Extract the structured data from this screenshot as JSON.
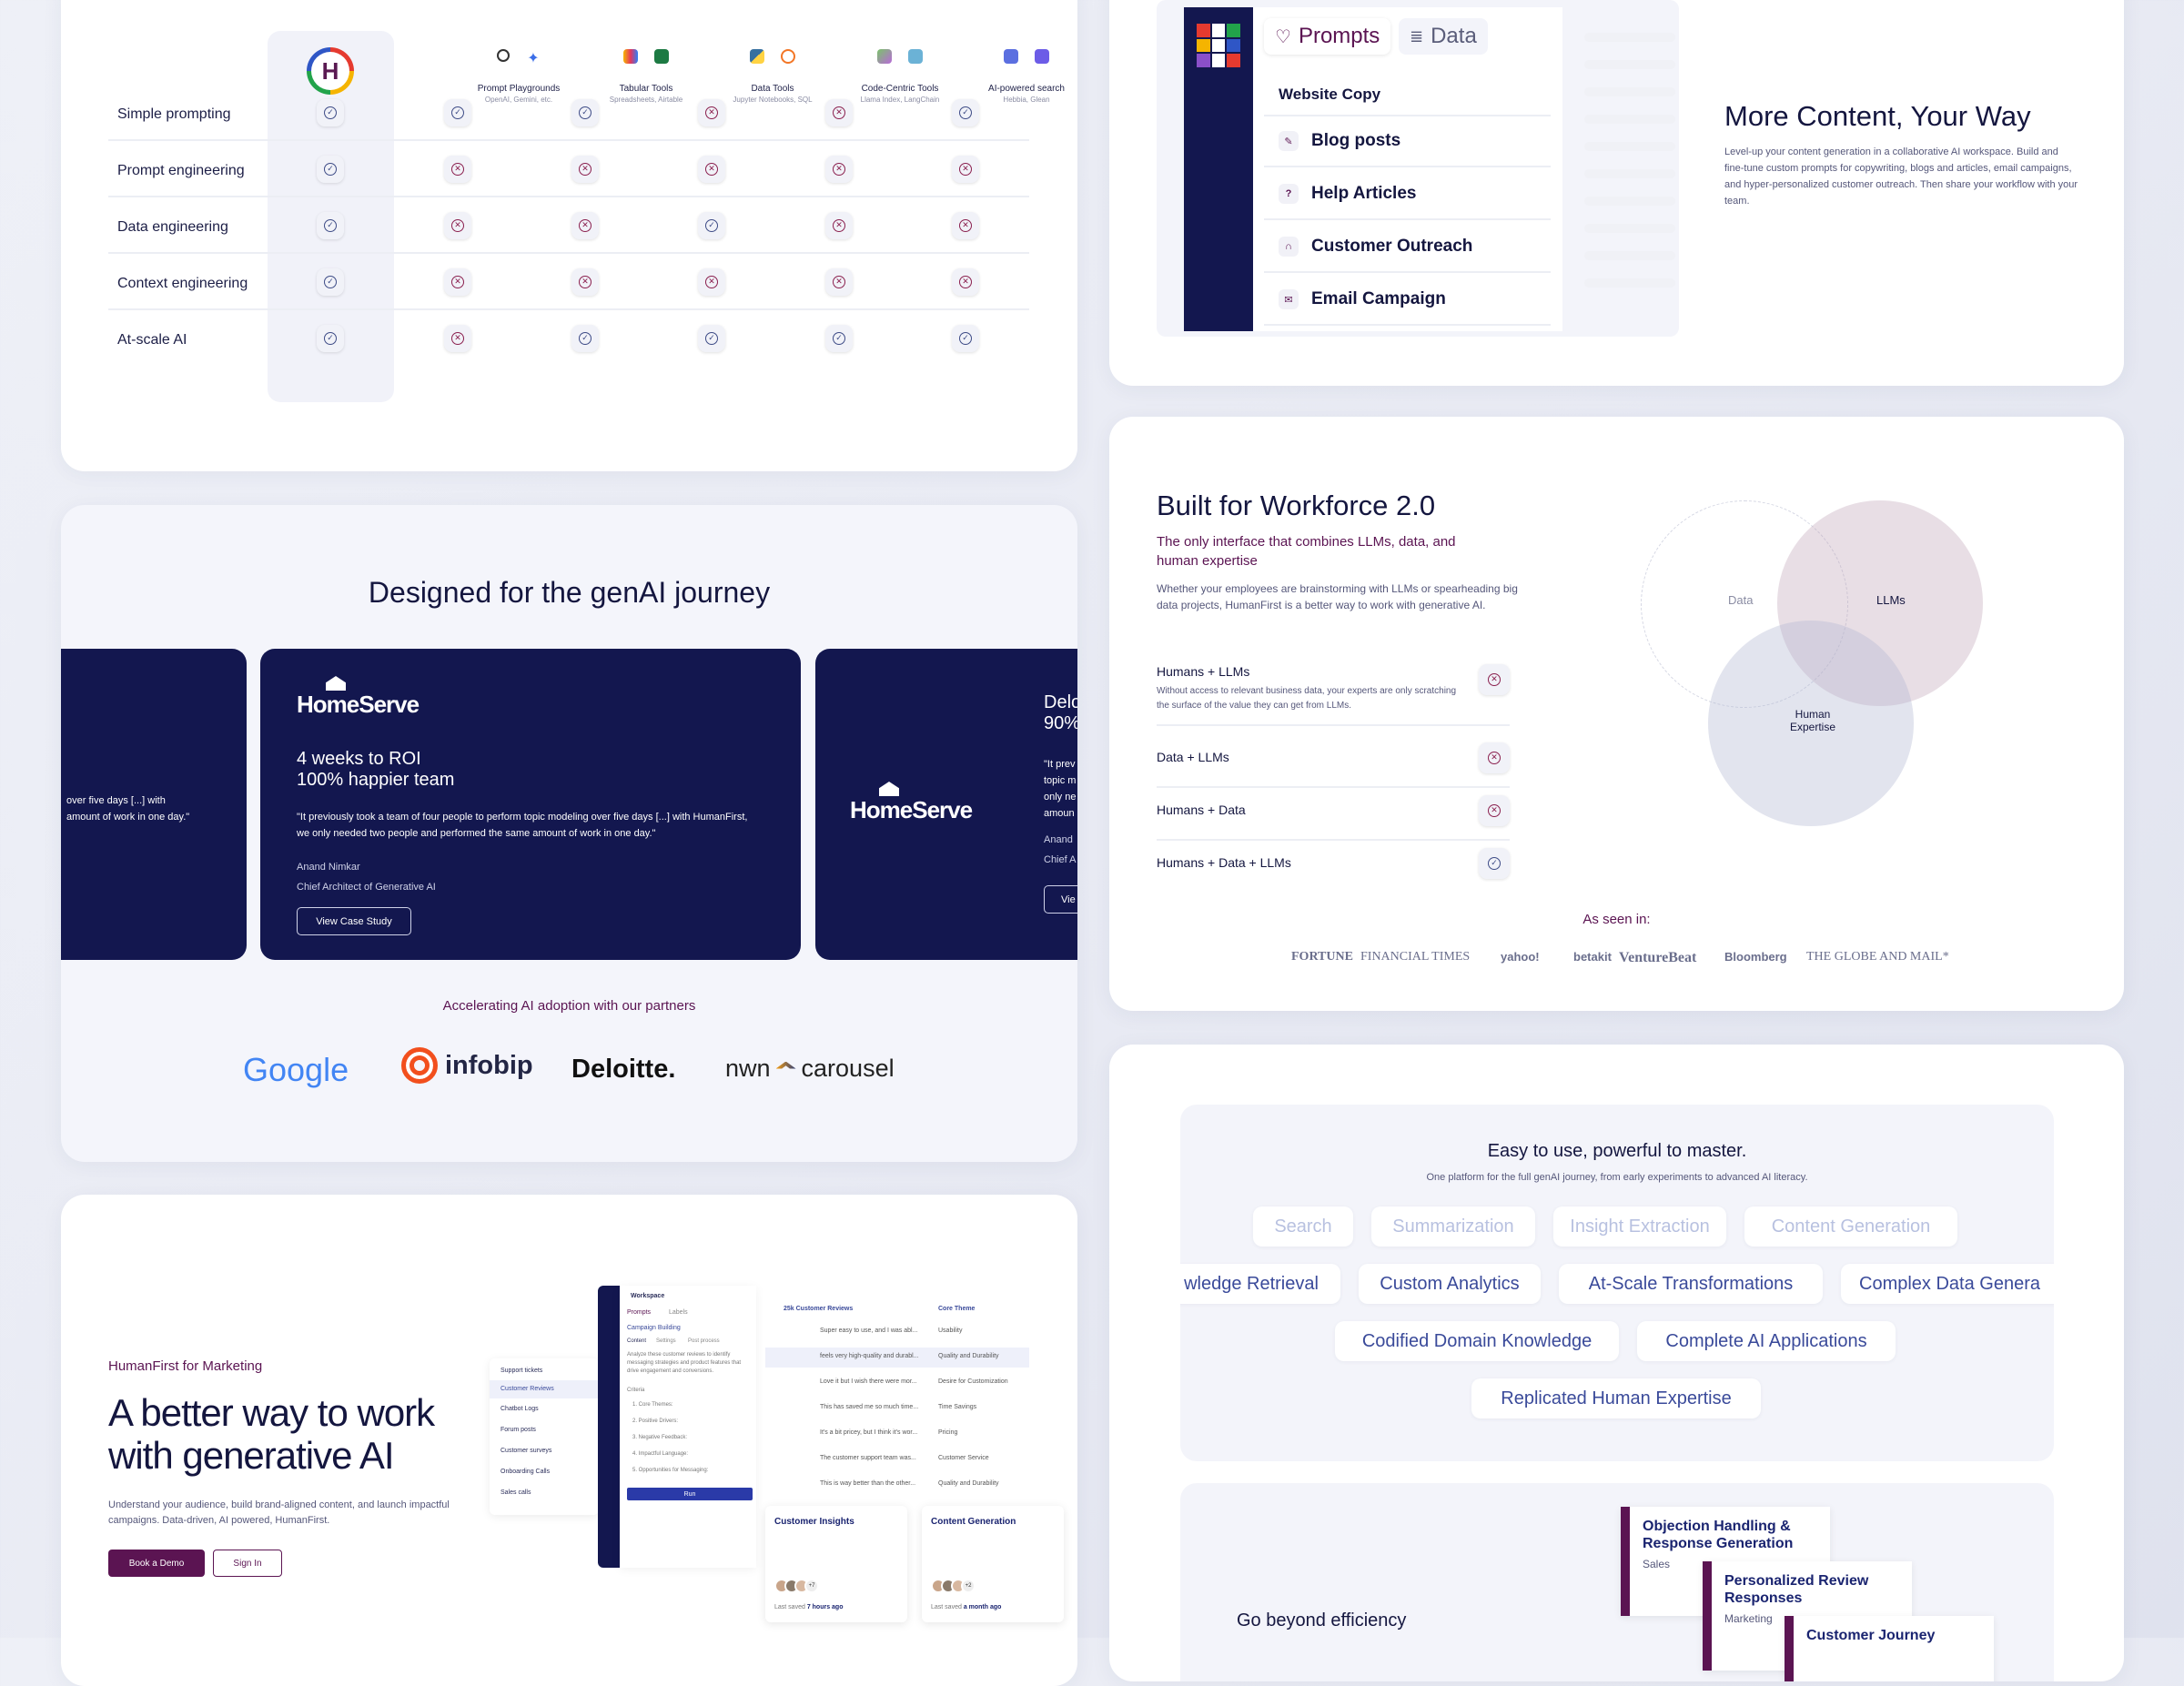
{
  "comparison": {
    "tools": [
      {
        "name": "Prompt Playgrounds",
        "sub": "OpenAI, Gemini, etc."
      },
      {
        "name": "Tabular Tools",
        "sub": "Spreadsheets, Airtable"
      },
      {
        "name": "Data Tools",
        "sub": "Jupyter Notebooks, SQL"
      },
      {
        "name": "Code-Centric Tools",
        "sub": "Llama Index, LangChain"
      },
      {
        "name": "AI-powered search",
        "sub": "Hebbia, Glean"
      }
    ],
    "rows": [
      {
        "label": "Simple prompting",
        "marks": [
          "check",
          "check",
          "check",
          "x",
          "x",
          "check"
        ]
      },
      {
        "label": "Prompt engineering",
        "marks": [
          "check",
          "x",
          "x",
          "x",
          "x",
          "x"
        ]
      },
      {
        "label": "Data engineering",
        "marks": [
          "check",
          "x",
          "x",
          "check",
          "x",
          "x"
        ]
      },
      {
        "label": "Context engineering",
        "marks": [
          "check",
          "x",
          "x",
          "x",
          "x",
          "x"
        ]
      },
      {
        "label": "At-scale AI",
        "marks": [
          "check",
          "x",
          "check",
          "check",
          "check",
          "check"
        ]
      }
    ],
    "brand_letter": "H"
  },
  "designed": {
    "title": "Designed for the genAI journey",
    "left_quote": "over five days [...] with\namount of work in one day.\"",
    "main": {
      "logo": "HomeServe",
      "headline1": "4 weeks to ROI",
      "headline2": "100% happier team",
      "quote": "\"It previously took a team of four people to perform topic modeling over five days [...] with HumanFirst, we only needed two people and performed the same amount of work in one day.\"",
      "person": "Anand Nimkar",
      "role": "Chief Architect of Generative AI",
      "button": "View Case Study"
    },
    "right": {
      "logo": "HomeServe",
      "headline1": "Delo",
      "headline2": "90%",
      "quote1": "\"It prev",
      "quote2": "topic m",
      "quote3": "only ne",
      "quote4": "amoun",
      "person": "Anand",
      "role": "Chief A",
      "button": "Vie"
    },
    "partners_title": "Accelerating AI adoption with our partners",
    "partners": [
      "Google",
      "infobip",
      "Deloitte.",
      "nwn",
      "carousel"
    ]
  },
  "marketing": {
    "eyebrow": "HumanFirst for Marketing",
    "title": "A better way to work with generative AI",
    "desc": "Understand your audience, build brand-aligned content, and launch impactful campaigns. Data-driven, AI powered, HumanFirst.",
    "primary": "Book a Demo",
    "secondary": "Sign In",
    "mock": {
      "folders": [
        "Support tickets",
        "Customer Reviews",
        "Chatbot Logs",
        "Forum posts",
        "Customer surveys",
        "Onboarding Calls",
        "Sales calls"
      ],
      "workspace": "Workspace",
      "tabs": [
        "Prompts",
        "Labels"
      ],
      "campaign": "Campaign Building",
      "subtabs": [
        "Content",
        "Settings",
        "Post process"
      ],
      "prompt": "Analyze these customer reviews to identify messaging strategies and product features that drive engagement and conversions.",
      "criteria": "Criteria",
      "steps": [
        "1. Core Themes:",
        "2. Positive Drivers:",
        "3. Negative Feedback:",
        "4. Impactful Language:",
        "5. Opportunities for Messaging:"
      ],
      "run": "Run",
      "col1": "25k Customer Reviews",
      "col2": "Core Theme",
      "reviews": [
        {
          "text": "Super easy to use, and I was abl...",
          "theme": "Usability"
        },
        {
          "text": "feels very high-quality and durabl...",
          "theme": "Quality and Durability"
        },
        {
          "text": "Love it but I wish there were mor...",
          "theme": "Desire for Customization"
        },
        {
          "text": "This has saved me so much time...",
          "theme": "Time Savings"
        },
        {
          "text": "It's a bit pricey, but I think it's wor...",
          "theme": "Pricing"
        },
        {
          "text": "The customer support team was...",
          "theme": "Customer Service"
        },
        {
          "text": "This is way better than the other...",
          "theme": "Quality and Durability"
        }
      ],
      "insights": {
        "title": "Customer Insights",
        "count": "+7",
        "saved": "Last saved",
        "when": "7 hours ago"
      },
      "generation": {
        "title": "Content Generation",
        "count": "+2",
        "saved": "Last saved",
        "when": "a month ago"
      }
    }
  },
  "prompts": {
    "tabs": [
      "Prompts",
      "Data"
    ],
    "section": "Website Copy",
    "items": [
      "Blog posts",
      "Help Articles",
      "Customer Outreach",
      "Email Campaign"
    ],
    "title": "More Content, Your Way",
    "desc": "Level-up your content generation in a collaborative AI workspace. Build and fine-tune custom prompts for copywriting, blogs and articles, email campaigns, and hyper-personalized customer outreach. Then share your workflow with your team."
  },
  "workforce": {
    "title": "Built for Workforce 2.0",
    "subtitle": "The only interface that combines LLMs, data, and human expertise",
    "desc": "Whether your employees are brainstorming with LLMs or spearheading big data projects, HumanFirst is a better way to work with generative AI.",
    "rows": [
      {
        "title": "Humans + LLMs",
        "desc": "Without access to relevant business data, your experts are only scratching the surface of the value they can get from LLMs.",
        "mark": "x"
      },
      {
        "title": "Data + LLMs",
        "desc": "",
        "mark": "x"
      },
      {
        "title": "Humans + Data",
        "desc": "",
        "mark": "x"
      },
      {
        "title": "Humans + Data + LLMs",
        "desc": "",
        "mark": "check"
      }
    ],
    "venn": {
      "data": "Data",
      "llms": "LLMs",
      "human": "Human Expertise"
    },
    "seen": "As seen in:",
    "press": [
      "FORTUNE",
      "FINANCIAL TIMES",
      "yahoo!",
      "betakit",
      "VentureBeat",
      "Bloomberg",
      "THE GLOBE AND MAIL*"
    ]
  },
  "easy": {
    "title": "Easy to use, powerful to master.",
    "subtitle": "One platform for the full genAI journey, from early experiments to advanced AI literacy.",
    "row1": [
      "Search",
      "Summarization",
      "Insight Extraction",
      "Content Generation"
    ],
    "row2": [
      "wledge Retrieval",
      "Custom Analytics",
      "At-Scale Transformations",
      "Complex Data Genera"
    ],
    "row3": [
      "Codified Domain Knowledge",
      "Complete AI Applications"
    ],
    "row4": [
      "Replicated Human Expertise"
    ],
    "efficiency": "Go beyond efficiency",
    "stack": [
      {
        "title": "Objection Handling & Response Generation",
        "sub": "Sales"
      },
      {
        "title": "Personalized Review Responses",
        "sub": "Marketing"
      },
      {
        "title": "Customer Journey",
        "sub": ""
      }
    ]
  },
  "colors": {
    "navy": "#13174f",
    "plum": "#5b1452",
    "check": "#3d4b86",
    "x": "#8a1f4e"
  }
}
